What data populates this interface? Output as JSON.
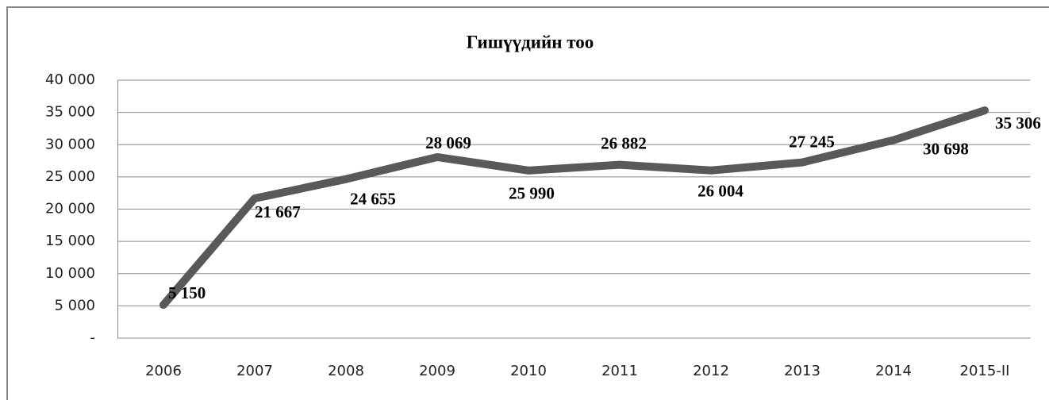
{
  "chart_data": {
    "type": "line",
    "title": "Гишүүдийн тоо",
    "categories": [
      "2006",
      "2007",
      "2008",
      "2009",
      "2010",
      "2011",
      "2012",
      "2013",
      "2014",
      "2015-II"
    ],
    "series": [
      {
        "color": "#595959",
        "values": [
          5150,
          21667,
          24655,
          28069,
          25990,
          26882,
          26004,
          27245,
          30698,
          35306
        ],
        "value_labels": [
          "5 150",
          "21 667",
          "24 655",
          "28 069",
          "25 990",
          "26 882",
          "26 004",
          "27 245",
          "30 698",
          "35 306"
        ]
      }
    ],
    "ylim": [
      0,
      40000
    ],
    "yticks": [
      {
        "value": 0,
        "label": "-"
      },
      {
        "value": 5000,
        "label": "5 000"
      },
      {
        "value": 10000,
        "label": "10 000"
      },
      {
        "value": 15000,
        "label": "15 000"
      },
      {
        "value": 20000,
        "label": "20 000"
      },
      {
        "value": 25000,
        "label": "25 000"
      },
      {
        "value": 30000,
        "label": "30 000"
      },
      {
        "value": 35000,
        "label": "35 000"
      },
      {
        "value": 40000,
        "label": "40 000"
      }
    ],
    "grid": true
  }
}
